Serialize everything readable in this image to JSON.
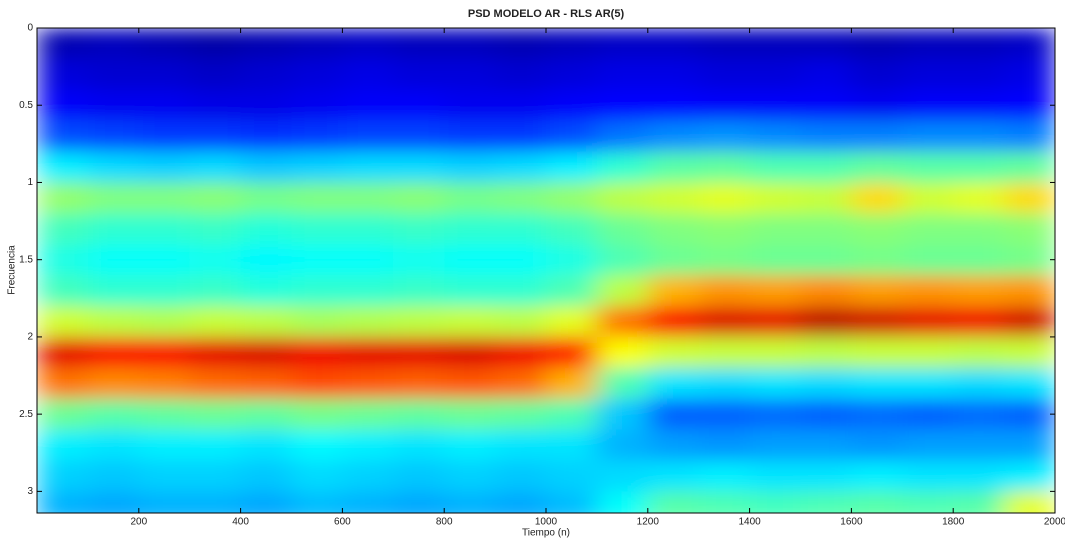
{
  "chart_data": {
    "type": "heatmap",
    "title": "PSD MODELO AR - RLS AR(5)",
    "x_label": "Tiempo (n)",
    "y_label": "Frecuencia",
    "xlim": [
      0,
      2000
    ],
    "ylim": [
      0,
      3.14
    ],
    "y_inverted": true,
    "xticks": [
      200,
      400,
      600,
      800,
      1000,
      1200,
      1400,
      1600,
      1800,
      2000
    ],
    "yticks": [
      0,
      0.5,
      1,
      1.5,
      2,
      2.5,
      3
    ],
    "colormap": "jet",
    "x": [
      50,
      150,
      250,
      350,
      450,
      550,
      650,
      750,
      850,
      950,
      1050,
      1150,
      1250,
      1350,
      1450,
      1550,
      1650,
      1750,
      1850,
      1950
    ],
    "y": [
      0.1,
      0.3,
      0.5,
      0.7,
      0.9,
      1.1,
      1.3,
      1.5,
      1.7,
      1.9,
      2.1,
      2.3,
      2.5,
      2.7,
      2.9,
      3.1
    ],
    "values": [
      [
        0.05,
        0.06,
        0.05,
        0.04,
        0.05,
        0.06,
        0.07,
        0.06,
        0.06,
        0.05,
        0.06,
        0.07,
        0.07,
        0.06,
        0.06,
        0.06,
        0.05,
        0.06,
        0.06,
        0.07
      ],
      [
        0.09,
        0.08,
        0.08,
        0.07,
        0.08,
        0.09,
        0.1,
        0.09,
        0.09,
        0.08,
        0.09,
        0.1,
        0.1,
        0.09,
        0.09,
        0.1,
        0.08,
        0.09,
        0.09,
        0.1
      ],
      [
        0.12,
        0.11,
        0.11,
        0.1,
        0.1,
        0.11,
        0.12,
        0.12,
        0.11,
        0.11,
        0.12,
        0.13,
        0.13,
        0.12,
        0.12,
        0.12,
        0.11,
        0.12,
        0.12,
        0.13
      ],
      [
        0.2,
        0.19,
        0.18,
        0.18,
        0.17,
        0.18,
        0.19,
        0.19,
        0.18,
        0.18,
        0.2,
        0.24,
        0.26,
        0.27,
        0.26,
        0.25,
        0.25,
        0.26,
        0.26,
        0.25
      ],
      [
        0.36,
        0.34,
        0.33,
        0.34,
        0.32,
        0.33,
        0.34,
        0.34,
        0.33,
        0.34,
        0.36,
        0.42,
        0.46,
        0.47,
        0.45,
        0.45,
        0.47,
        0.46,
        0.46,
        0.47
      ],
      [
        0.52,
        0.5,
        0.5,
        0.51,
        0.49,
        0.5,
        0.5,
        0.51,
        0.49,
        0.5,
        0.52,
        0.56,
        0.58,
        0.6,
        0.58,
        0.57,
        0.66,
        0.58,
        0.6,
        0.66
      ],
      [
        0.44,
        0.42,
        0.42,
        0.43,
        0.41,
        0.42,
        0.42,
        0.43,
        0.42,
        0.42,
        0.44,
        0.48,
        0.5,
        0.51,
        0.5,
        0.5,
        0.51,
        0.5,
        0.5,
        0.51
      ],
      [
        0.4,
        0.38,
        0.38,
        0.39,
        0.37,
        0.38,
        0.38,
        0.39,
        0.38,
        0.38,
        0.4,
        0.45,
        0.48,
        0.49,
        0.48,
        0.48,
        0.49,
        0.48,
        0.48,
        0.49
      ],
      [
        0.44,
        0.42,
        0.42,
        0.43,
        0.41,
        0.42,
        0.42,
        0.43,
        0.42,
        0.42,
        0.45,
        0.56,
        0.7,
        0.73,
        0.72,
        0.74,
        0.72,
        0.73,
        0.72,
        0.73
      ],
      [
        0.58,
        0.56,
        0.55,
        0.57,
        0.56,
        0.54,
        0.55,
        0.56,
        0.57,
        0.56,
        0.6,
        0.76,
        0.88,
        0.91,
        0.9,
        0.94,
        0.92,
        0.9,
        0.89,
        0.92
      ],
      [
        0.9,
        0.88,
        0.88,
        0.9,
        0.91,
        0.89,
        0.9,
        0.9,
        0.91,
        0.89,
        0.85,
        0.62,
        0.58,
        0.57,
        0.57,
        0.56,
        0.57,
        0.57,
        0.56,
        0.57
      ],
      [
        0.76,
        0.74,
        0.75,
        0.77,
        0.78,
        0.8,
        0.79,
        0.78,
        0.79,
        0.77,
        0.7,
        0.45,
        0.35,
        0.34,
        0.35,
        0.34,
        0.35,
        0.35,
        0.34,
        0.35
      ],
      [
        0.48,
        0.46,
        0.47,
        0.48,
        0.47,
        0.49,
        0.48,
        0.47,
        0.48,
        0.47,
        0.45,
        0.32,
        0.22,
        0.22,
        0.23,
        0.22,
        0.23,
        0.22,
        0.23,
        0.22
      ],
      [
        0.36,
        0.35,
        0.36,
        0.36,
        0.35,
        0.37,
        0.36,
        0.35,
        0.36,
        0.35,
        0.35,
        0.3,
        0.28,
        0.27,
        0.28,
        0.28,
        0.27,
        0.28,
        0.28,
        0.28
      ],
      [
        0.33,
        0.32,
        0.33,
        0.33,
        0.32,
        0.34,
        0.33,
        0.32,
        0.33,
        0.32,
        0.33,
        0.34,
        0.35,
        0.36,
        0.35,
        0.35,
        0.36,
        0.35,
        0.35,
        0.36
      ],
      [
        0.3,
        0.29,
        0.3,
        0.3,
        0.29,
        0.31,
        0.3,
        0.29,
        0.3,
        0.29,
        0.31,
        0.38,
        0.46,
        0.45,
        0.44,
        0.45,
        0.46,
        0.45,
        0.46,
        0.6
      ]
    ]
  }
}
